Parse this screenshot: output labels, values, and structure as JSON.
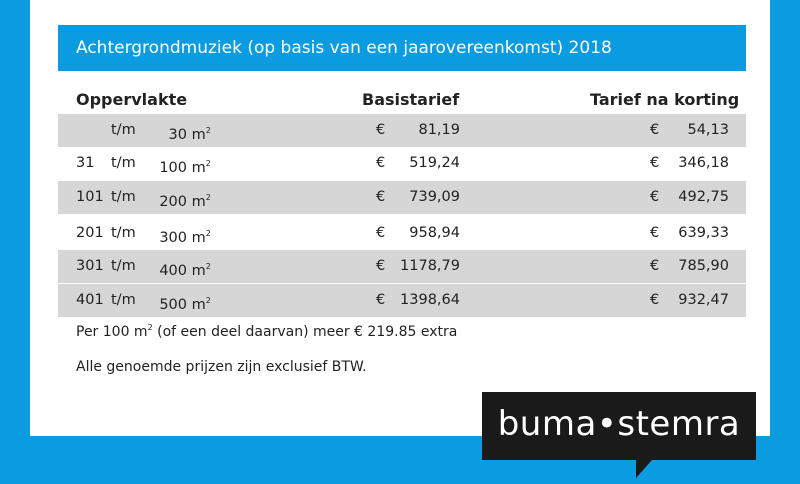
{
  "title": "Achtergrondmuziek (op basis van een jaarovereenkomst) 2018",
  "headers": {
    "area": "Oppervlakte",
    "base": "Basistarief",
    "discount": "Tarief na korting"
  },
  "labels": {
    "tm": "t/m",
    "unit": "m",
    "unit_sup": "2",
    "currency": "€"
  },
  "rows": [
    {
      "from": "",
      "to": "30",
      "base": "81,19",
      "discount": "54,13"
    },
    {
      "from": "31",
      "to": "100",
      "base": "519,24",
      "discount": "346,18"
    },
    {
      "from": "101",
      "to": "200",
      "base": "739,09",
      "discount": "492,75"
    },
    {
      "from": "201",
      "to": "300",
      "base": "958,94",
      "discount": "639,33"
    },
    {
      "from": "301",
      "to": "400",
      "base": "1178,79",
      "discount": "785,90"
    },
    {
      "from": "401",
      "to": "500",
      "base": "1398,64",
      "discount": "932,47"
    }
  ],
  "notes": {
    "extra_prefix": "Per 100 m",
    "extra_sup": "2",
    "extra_suffix": " (of een deel daarvan) meer € 219.85 extra",
    "vat": "Alle genoemde prijzen zijn exclusief BTW."
  },
  "logo": {
    "text": "buma•stemra"
  },
  "colors": {
    "brand_blue": "#0a9be0",
    "row_shade": "#d6d6d6",
    "logo_bg": "#1a1a1a"
  }
}
